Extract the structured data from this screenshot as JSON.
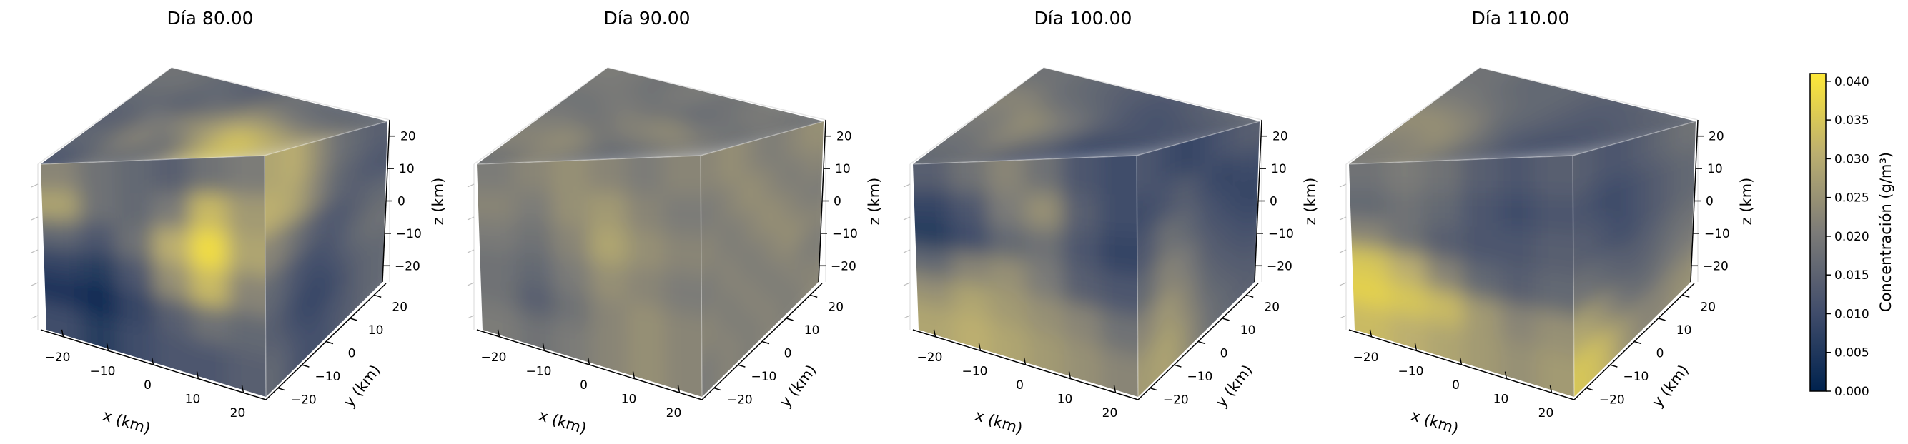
{
  "chart_data": {
    "type": "heatmap",
    "variant": "3d-volume-render",
    "colormap": "cividis",
    "panels": [
      {
        "title": "Día 80.00",
        "faces": {
          "top": [
            [
              0.3,
              0.45,
              0.4,
              0.55,
              0.85,
              0.7
            ],
            [
              0.4,
              0.55,
              0.45,
              0.7,
              0.9,
              0.75
            ],
            [
              0.35,
              0.5,
              0.6,
              0.75,
              0.7,
              0.55
            ],
            [
              0.4,
              0.35,
              0.45,
              0.6,
              0.5,
              0.45
            ],
            [
              0.45,
              0.4,
              0.35,
              0.45,
              0.4,
              0.4
            ]
          ],
          "front": [
            [
              0.55,
              0.45,
              0.4,
              0.35,
              0.45,
              0.5
            ],
            [
              0.7,
              0.45,
              0.4,
              0.5,
              0.8,
              0.65
            ],
            [
              0.4,
              0.3,
              0.45,
              0.75,
              0.95,
              0.7
            ],
            [
              0.2,
              0.15,
              0.3,
              0.6,
              0.8,
              0.55
            ],
            [
              0.1,
              0.05,
              0.2,
              0.35,
              0.45,
              0.4
            ],
            [
              0.25,
              0.15,
              0.25,
              0.3,
              0.3,
              0.35
            ]
          ],
          "side": [
            [
              0.7,
              0.75,
              0.6,
              0.45,
              0.4,
              0.35
            ],
            [
              0.75,
              0.7,
              0.55,
              0.4,
              0.35,
              0.3
            ],
            [
              0.55,
              0.45,
              0.35,
              0.3,
              0.35,
              0.4
            ],
            [
              0.4,
              0.3,
              0.25,
              0.3,
              0.4,
              0.45
            ],
            [
              0.35,
              0.25,
              0.2,
              0.25,
              0.35,
              0.4
            ],
            [
              0.4,
              0.3,
              0.25,
              0.3,
              0.35,
              0.4
            ]
          ]
        }
      },
      {
        "title": "Día 90.00",
        "faces": {
          "top": [
            [
              0.45,
              0.55,
              0.5,
              0.4,
              0.45,
              0.5
            ],
            [
              0.55,
              0.6,
              0.45,
              0.5,
              0.55,
              0.45
            ],
            [
              0.5,
              0.45,
              0.55,
              0.6,
              0.5,
              0.45
            ],
            [
              0.45,
              0.5,
              0.45,
              0.4,
              0.45,
              0.5
            ],
            [
              0.5,
              0.45,
              0.5,
              0.45,
              0.5,
              0.45
            ]
          ],
          "front": [
            [
              0.5,
              0.55,
              0.6,
              0.55,
              0.5,
              0.55
            ],
            [
              0.55,
              0.5,
              0.6,
              0.65,
              0.55,
              0.5
            ],
            [
              0.5,
              0.45,
              0.55,
              0.7,
              0.6,
              0.55
            ],
            [
              0.45,
              0.4,
              0.5,
              0.6,
              0.55,
              0.5
            ],
            [
              0.45,
              0.35,
              0.45,
              0.55,
              0.6,
              0.55
            ],
            [
              0.5,
              0.45,
              0.5,
              0.55,
              0.6,
              0.55
            ]
          ],
          "side": [
            [
              0.55,
              0.6,
              0.55,
              0.5,
              0.55,
              0.6
            ],
            [
              0.5,
              0.55,
              0.6,
              0.55,
              0.5,
              0.55
            ],
            [
              0.55,
              0.5,
              0.55,
              0.6,
              0.55,
              0.5
            ],
            [
              0.5,
              0.55,
              0.5,
              0.55,
              0.6,
              0.55
            ],
            [
              0.55,
              0.5,
              0.55,
              0.5,
              0.55,
              0.5
            ],
            [
              0.5,
              0.55,
              0.5,
              0.55,
              0.5,
              0.55
            ]
          ]
        }
      },
      {
        "title": "Día 100.00",
        "faces": {
          "top": [
            [
              0.4,
              0.45,
              0.35,
              0.3,
              0.25,
              0.3
            ],
            [
              0.45,
              0.55,
              0.45,
              0.25,
              0.2,
              0.25
            ],
            [
              0.5,
              0.6,
              0.5,
              0.35,
              0.3,
              0.35
            ],
            [
              0.55,
              0.45,
              0.4,
              0.3,
              0.25,
              0.3
            ],
            [
              0.45,
              0.4,
              0.35,
              0.3,
              0.35,
              0.4
            ]
          ],
          "front": [
            [
              0.35,
              0.45,
              0.55,
              0.45,
              0.3,
              0.25
            ],
            [
              0.2,
              0.3,
              0.5,
              0.6,
              0.35,
              0.25
            ],
            [
              0.15,
              0.25,
              0.4,
              0.45,
              0.3,
              0.2
            ],
            [
              0.4,
              0.55,
              0.6,
              0.5,
              0.35,
              0.3
            ],
            [
              0.6,
              0.7,
              0.65,
              0.6,
              0.55,
              0.45
            ],
            [
              0.7,
              0.75,
              0.7,
              0.65,
              0.6,
              0.55
            ]
          ],
          "side": [
            [
              0.3,
              0.25,
              0.2,
              0.25,
              0.3,
              0.35
            ],
            [
              0.25,
              0.3,
              0.35,
              0.25,
              0.2,
              0.25
            ],
            [
              0.3,
              0.45,
              0.4,
              0.3,
              0.25,
              0.2
            ],
            [
              0.4,
              0.55,
              0.5,
              0.35,
              0.3,
              0.25
            ],
            [
              0.55,
              0.65,
              0.55,
              0.4,
              0.35,
              0.3
            ],
            [
              0.65,
              0.7,
              0.6,
              0.45,
              0.4,
              0.35
            ]
          ]
        }
      },
      {
        "title": "Día 110.00",
        "faces": {
          "top": [
            [
              0.5,
              0.55,
              0.45,
              0.35,
              0.3,
              0.35
            ],
            [
              0.55,
              0.6,
              0.45,
              0.3,
              0.25,
              0.3
            ],
            [
              0.6,
              0.55,
              0.4,
              0.35,
              0.3,
              0.35
            ],
            [
              0.5,
              0.45,
              0.4,
              0.35,
              0.3,
              0.35
            ],
            [
              0.45,
              0.4,
              0.4,
              0.35,
              0.35,
              0.4
            ]
          ],
          "front": [
            [
              0.45,
              0.5,
              0.45,
              0.35,
              0.3,
              0.35
            ],
            [
              0.4,
              0.45,
              0.4,
              0.3,
              0.25,
              0.3
            ],
            [
              0.55,
              0.45,
              0.35,
              0.3,
              0.3,
              0.35
            ],
            [
              0.85,
              0.75,
              0.55,
              0.4,
              0.35,
              0.4
            ],
            [
              0.9,
              0.85,
              0.8,
              0.65,
              0.55,
              0.6
            ],
            [
              0.8,
              0.75,
              0.7,
              0.65,
              0.6,
              0.65
            ]
          ],
          "side": [
            [
              0.35,
              0.3,
              0.3,
              0.35,
              0.4,
              0.45
            ],
            [
              0.3,
              0.25,
              0.25,
              0.3,
              0.35,
              0.4
            ],
            [
              0.35,
              0.3,
              0.25,
              0.3,
              0.35,
              0.4
            ],
            [
              0.45,
              0.4,
              0.35,
              0.35,
              0.4,
              0.45
            ],
            [
              0.7,
              0.6,
              0.45,
              0.4,
              0.45,
              0.5
            ],
            [
              0.85,
              0.8,
              0.65,
              0.55,
              0.55,
              0.6
            ]
          ]
        }
      }
    ],
    "x": {
      "label": "x (km)",
      "ticks": [
        -20,
        -10,
        0,
        10,
        20
      ],
      "tick_labels": [
        "−20",
        "−10",
        "0",
        "10",
        "20"
      ],
      "range": [
        -25,
        25
      ]
    },
    "y": {
      "label": "y (km)",
      "ticks": [
        -20,
        -10,
        0,
        10,
        20
      ],
      "tick_labels": [
        "−20",
        "−10",
        "0",
        "10",
        "20"
      ],
      "range": [
        -25,
        25
      ]
    },
    "z": {
      "label": "z (km)",
      "ticks": [
        -20,
        -10,
        0,
        10,
        20
      ],
      "tick_labels": [
        "−20",
        "−10",
        "0",
        "10",
        "20"
      ],
      "range": [
        -25,
        25
      ]
    },
    "colorbar": {
      "label": "Concentración (g/m³)",
      "range": [
        0.0,
        0.041
      ],
      "ticks": [
        0.0,
        0.005,
        0.01,
        0.015,
        0.02,
        0.025,
        0.03,
        0.035,
        0.04
      ],
      "tick_labels": [
        "0.000",
        "0.005",
        "0.010",
        "0.015",
        "0.020",
        "0.025",
        "0.030",
        "0.035",
        "0.040"
      ]
    }
  }
}
